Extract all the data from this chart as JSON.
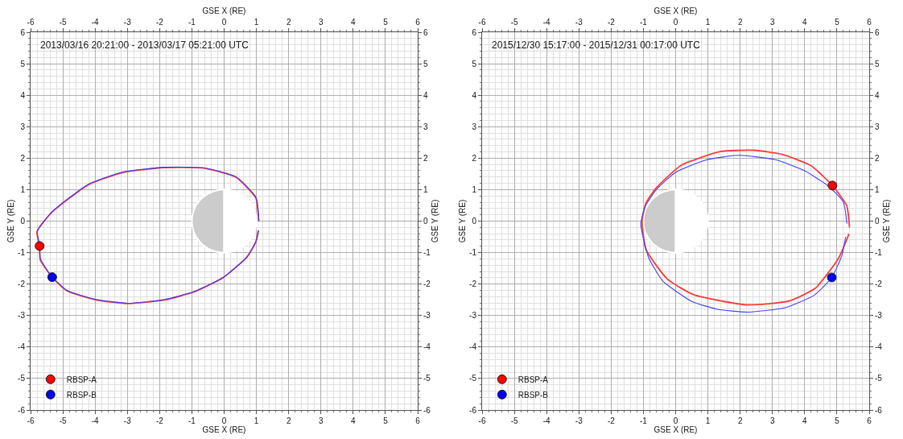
{
  "chart_data": [
    {
      "type": "line",
      "title": "2013/03/16 20:21:00 - 2013/03/17 05:21:00 UTC",
      "xlabel": "GSE X (RE)",
      "x2label": "GSE X (RE)",
      "ylabel": "GSE Y (RE)",
      "y2label": "GSE Y (RE)",
      "xlim": [
        -6,
        6
      ],
      "xticks": [
        -6,
        -5,
        -4,
        -3,
        -2,
        -1,
        0,
        1,
        2,
        3,
        4,
        5,
        6
      ],
      "x2lim": [
        -6,
        6
      ],
      "x2ticks": [
        -6,
        -5,
        -4,
        -3,
        -2,
        -1,
        0,
        1,
        2,
        3,
        4,
        5,
        6
      ],
      "ylim": [
        -6,
        6
      ],
      "yticks": [
        -6,
        -5,
        -4,
        -3,
        -2,
        -1,
        0,
        1,
        2,
        3,
        4,
        5,
        6
      ],
      "y2lim": [
        -6,
        6
      ],
      "y2ticks": [
        -6,
        -5,
        -4,
        -3,
        -2,
        -1,
        0,
        1,
        2,
        3,
        4,
        5,
        6
      ],
      "grid": true,
      "legend": "bottom left",
      "series": [
        {
          "type": "line",
          "color": "#ff4444",
          "x": [
            1.07,
            0.98,
            0.37,
            -0.61,
            -1.84,
            -3.16,
            -4.22,
            -5.33,
            -5.8,
            -5.72,
            -5.7,
            -5.33,
            -4.88,
            -3.98,
            -2.99,
            -1.84,
            -0.94,
            -0.04,
            0.7,
            0.98,
            1.06
          ],
          "values": [
            0,
            0.74,
            1.39,
            1.68,
            1.7,
            1.54,
            1.15,
            0.29,
            -0.33,
            -0.79,
            -1.23,
            -1.78,
            -2.21,
            -2.5,
            -2.62,
            -2.5,
            -2.25,
            -1.8,
            -1.15,
            -0.66,
            -0.3
          ]
        },
        {
          "type": "line",
          "color": "#4444ff",
          "x": [
            1.08,
            0.99,
            0.38,
            -0.6,
            -1.83,
            -3.15,
            -4.21,
            -5.32,
            -5.79,
            -5.73,
            -5.69,
            -5.33,
            -4.87,
            -3.97,
            -2.98,
            -1.83,
            -0.93,
            -0.03,
            0.71,
            0.99,
            1.07
          ],
          "values": [
            0,
            0.75,
            1.4,
            1.69,
            1.71,
            1.56,
            1.17,
            0.31,
            -0.31,
            -0.77,
            -1.21,
            -1.78,
            -2.2,
            -2.49,
            -2.61,
            -2.49,
            -2.24,
            -1.79,
            -1.14,
            -0.65,
            -0.3
          ]
        },
        {
          "type": "scatter",
          "name": "RBSP-A",
          "color": "#ff0000",
          "marker": "circle",
          "x": [
            -5.72
          ],
          "values": [
            -0.79
          ]
        },
        {
          "type": "scatter",
          "name": "RBSP-B",
          "color": "#0000ff",
          "marker": "circle",
          "x": [
            -5.33
          ],
          "values": [
            -1.78
          ]
        }
      ]
    },
    {
      "type": "line",
      "title": "2015/12/30 15:17:00 - 2015/12/31 00:17:00 UTC",
      "xlabel": "GSE X (RE)",
      "x2label": "GSE X (RE)",
      "ylabel": "GSE Y (RE)",
      "y2label": "GSE Y (RE)",
      "xlim": [
        -6,
        6
      ],
      "xticks": [
        -6,
        -5,
        -4,
        -3,
        -2,
        -1,
        0,
        1,
        2,
        3,
        4,
        5,
        6
      ],
      "x2lim": [
        -6,
        6
      ],
      "x2ticks": [
        -6,
        -5,
        -4,
        -3,
        -2,
        -1,
        0,
        1,
        2,
        3,
        4,
        5,
        6
      ],
      "ylim": [
        -6,
        6
      ],
      "yticks": [
        -6,
        -5,
        -4,
        -3,
        -2,
        -1,
        0,
        1,
        2,
        3,
        4,
        5,
        6
      ],
      "y2lim": [
        -6,
        6
      ],
      "y2ticks": [
        -6,
        -5,
        -4,
        -3,
        -2,
        -1,
        0,
        1,
        2,
        3,
        4,
        5,
        6
      ],
      "grid": true,
      "legend": "bottom left",
      "series": [
        {
          "type": "line",
          "color": "#ff4444",
          "x": [
            5.39,
            5.3,
            4.86,
            4.2,
            3.3,
            2.44,
            1.38,
            0.15,
            -0.63,
            -0.92,
            -1.04,
            -0.92,
            -0.26,
            0.56,
            2.2,
            3.51,
            4.33,
            5.02,
            5.31,
            5.37
          ],
          "values": [
            -0.2,
            0.5,
            1.13,
            1.76,
            2.12,
            2.25,
            2.21,
            1.76,
            1.02,
            0.57,
            0,
            -0.9,
            -1.84,
            -2.34,
            -2.66,
            -2.54,
            -2.13,
            -1.23,
            -0.57,
            -0.4
          ]
        },
        {
          "type": "line",
          "color": "#4444ff",
          "x": [
            5.31,
            5.2,
            4.75,
            4.0,
            3.1,
            1.95,
            0.93,
            0.0,
            -0.6,
            -0.95,
            -1.08,
            -0.84,
            -0.4,
            0.5,
            1.3,
            2.2,
            3.4,
            4.3,
            4.84,
            5.15,
            5.27
          ],
          "values": [
            -0.08,
            0.6,
            1.1,
            1.6,
            1.95,
            2.09,
            1.94,
            1.55,
            1.0,
            0.45,
            -0.1,
            -1.15,
            -1.9,
            -2.55,
            -2.8,
            -2.89,
            -2.75,
            -2.35,
            -1.79,
            -1.1,
            -0.5
          ]
        },
        {
          "type": "scatter",
          "name": "RBSP-A",
          "color": "#ff0000",
          "marker": "circle",
          "x": [
            4.86
          ],
          "values": [
            1.13
          ]
        },
        {
          "type": "scatter",
          "name": "RBSP-B",
          "color": "#0000ff",
          "marker": "circle",
          "x": [
            4.84
          ],
          "values": [
            -1.79
          ]
        }
      ]
    }
  ]
}
